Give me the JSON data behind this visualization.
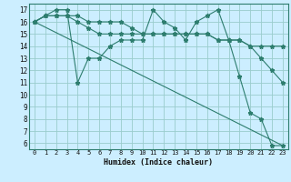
{
  "xlabel": "Humidex (Indice chaleur)",
  "bg_color": "#cceeff",
  "grid_color": "#99cccc",
  "line_color": "#2d7d6e",
  "xlim": [
    -0.5,
    23.5
  ],
  "ylim": [
    5.5,
    17.5
  ],
  "xticks": [
    0,
    1,
    2,
    3,
    4,
    5,
    6,
    7,
    8,
    9,
    10,
    11,
    12,
    13,
    14,
    15,
    16,
    17,
    18,
    19,
    20,
    21,
    22,
    23
  ],
  "yticks": [
    6,
    7,
    8,
    9,
    10,
    11,
    12,
    13,
    14,
    15,
    16,
    17
  ],
  "lines": [
    {
      "x": [
        0,
        1,
        2,
        3,
        4,
        5,
        6,
        7,
        8,
        9,
        10,
        11,
        12,
        13,
        14,
        15,
        16,
        17,
        18,
        19,
        20,
        21,
        22,
        23
      ],
      "y": [
        16,
        16.5,
        17,
        17,
        11,
        13,
        13,
        14,
        14.5,
        14.5,
        14.5,
        17,
        16,
        15.5,
        14.5,
        16,
        16.5,
        17,
        14.5,
        11.5,
        8.5,
        8,
        5.8,
        5.8
      ],
      "marker": true
    },
    {
      "x": [
        0,
        23
      ],
      "y": [
        16,
        5.8
      ],
      "marker": false
    },
    {
      "x": [
        0,
        1,
        2,
        3,
        4,
        5,
        6,
        7,
        8,
        9,
        10,
        11,
        12,
        13,
        14,
        15,
        16,
        17,
        18,
        19,
        20,
        21,
        22,
        23
      ],
      "y": [
        16,
        16.5,
        16.5,
        16.5,
        16,
        15.5,
        15,
        15,
        15,
        15,
        15,
        15,
        15,
        15,
        15,
        15,
        15,
        14.5,
        14.5,
        14.5,
        14,
        14,
        14,
        14
      ],
      "marker": true
    },
    {
      "x": [
        0,
        1,
        2,
        3,
        4,
        5,
        6,
        7,
        8,
        9,
        10,
        11,
        12,
        13,
        14,
        15,
        16,
        17,
        18,
        19,
        20,
        21,
        22,
        23
      ],
      "y": [
        16,
        16.5,
        16.5,
        16.5,
        16.5,
        16,
        16,
        16,
        16,
        15.5,
        15,
        15,
        15,
        15,
        15,
        15,
        15,
        14.5,
        14.5,
        14.5,
        14,
        13,
        12,
        11
      ],
      "marker": true
    }
  ]
}
